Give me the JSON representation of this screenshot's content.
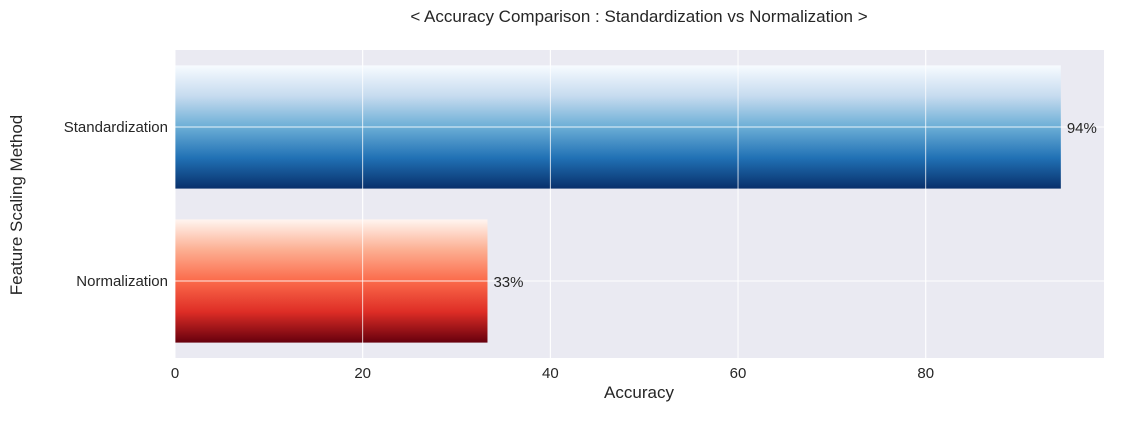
{
  "chart_data": {
    "type": "bar",
    "orientation": "horizontal",
    "title": "< Accuracy Comparison : Standardization vs Normalization >",
    "xlabel": "Accuracy",
    "ylabel": "Feature Scaling Method",
    "categories": [
      "Standardization",
      "Normalization"
    ],
    "values": [
      94.4,
      33.3
    ],
    "data_labels": [
      "94%",
      "33%"
    ],
    "xlim": [
      0,
      99
    ],
    "xticks": [
      0,
      20,
      40,
      60,
      80
    ],
    "xtick_labels": [
      "0",
      "20",
      "40",
      "60",
      "80"
    ],
    "grid": true,
    "background": "#eaeaf2",
    "gradients": [
      {
        "name": "Blues",
        "stops": [
          "#f7fbff",
          "#c6dbef",
          "#6baed6",
          "#2171b5",
          "#08306b"
        ]
      },
      {
        "name": "Reds",
        "stops": [
          "#fff5f0",
          "#fcae91",
          "#fb6a4a",
          "#de2d26",
          "#67000d"
        ]
      }
    ]
  }
}
